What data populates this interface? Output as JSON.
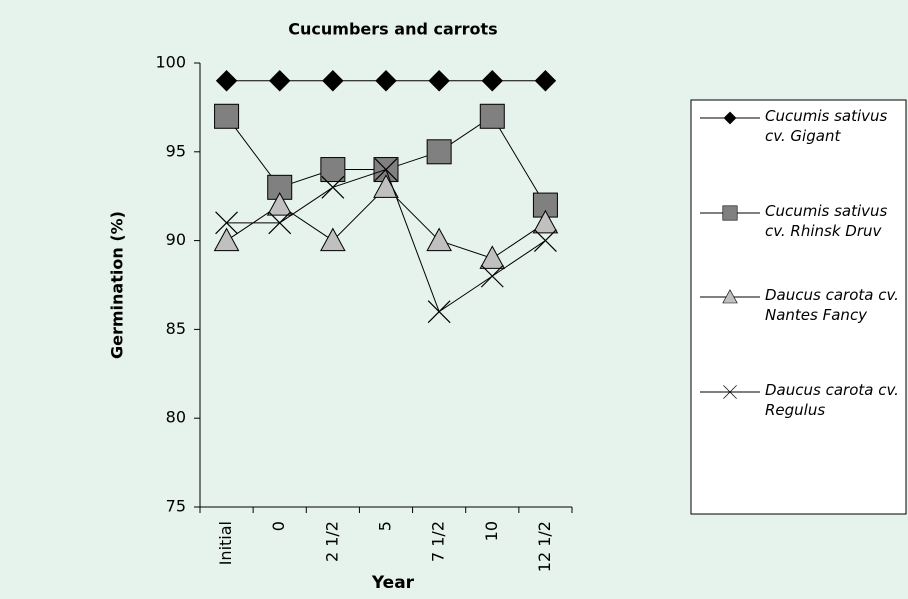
{
  "chart_data": {
    "type": "line",
    "title": "Cucumbers and carrots",
    "x_label": "Year",
    "y_label": "Germination (%)",
    "categories": [
      "Initial",
      "0",
      "2 1/2",
      "5",
      "7 1/2",
      "10",
      "12 1/2"
    ],
    "ylim": [
      75,
      100
    ],
    "yticks": [
      75,
      80,
      85,
      90,
      95,
      100
    ],
    "grid": false,
    "legend": "right",
    "series": [
      {
        "name": "Cucumis sativus cv. Gigant",
        "color": "#000000",
        "marker": "diamond",
        "values": [
          99,
          99,
          99,
          99,
          99,
          99,
          99
        ]
      },
      {
        "name": "Cucumis sativus cv. Rhinsk Druv",
        "color": "#808080",
        "marker": "square",
        "values": [
          97,
          93,
          94,
          94,
          95,
          97,
          92
        ]
      },
      {
        "name": "Daucus carota cv. Nantes Fancy",
        "color": "#c0c0c0",
        "marker": "triangle",
        "values": [
          90,
          92,
          90,
          93,
          90,
          89,
          91
        ]
      },
      {
        "name": "Daucus carota cv. Regulus",
        "color": "#000000",
        "marker": "x",
        "values": [
          91,
          91,
          93,
          94,
          86,
          88,
          90
        ]
      }
    ]
  }
}
